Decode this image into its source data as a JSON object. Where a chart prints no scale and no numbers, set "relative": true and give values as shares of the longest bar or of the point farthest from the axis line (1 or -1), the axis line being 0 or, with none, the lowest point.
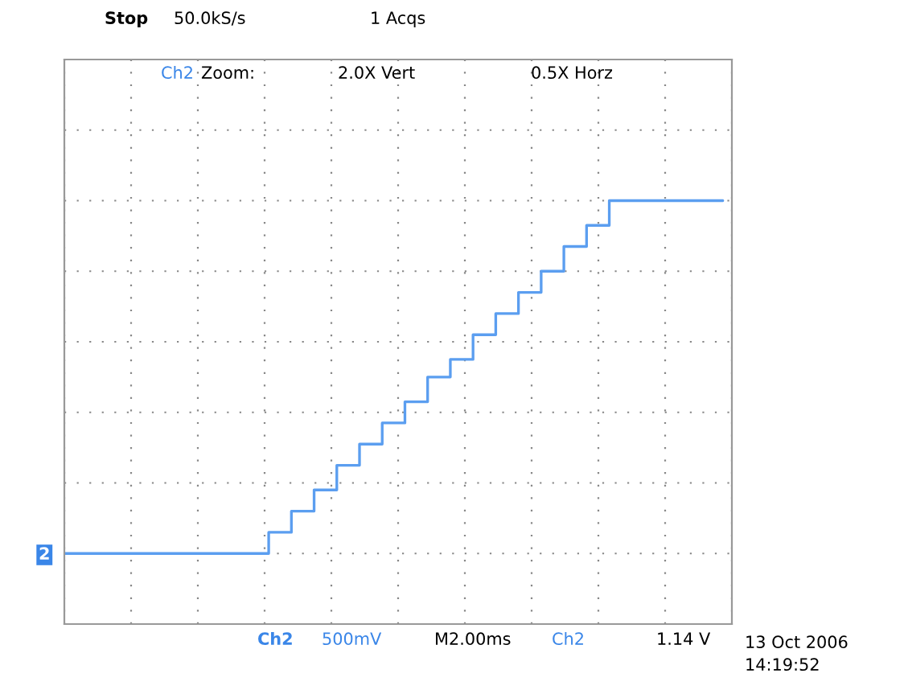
{
  "chart_data": {
    "type": "step",
    "relative": true,
    "grid": true,
    "tick_labels": false,
    "categories": [
      null,
      null,
      null,
      null,
      null,
      null,
      null,
      null,
      null,
      null,
      null,
      null,
      null,
      null,
      null,
      null,
      null,
      null,
      null,
      null,
      null,
      null,
      null,
      null,
      null,
      null,
      null,
      null,
      null,
      null
    ],
    "series": [
      {
        "color": "#5b9ef0",
        "values": [
          0,
          0,
          0,
          0,
          0,
          0,
          0,
          0,
          0,
          0.06,
          0.12,
          0.18,
          0.25,
          0.31,
          0.37,
          0.43,
          0.5,
          0.55,
          0.62,
          0.68,
          0.74,
          0.8,
          0.87,
          0.93,
          1,
          1,
          1,
          1,
          1,
          1
        ]
      }
    ],
    "annotations": [
      "Stop",
      "50.0kS/s",
      "1 Acqs",
      "Ch2",
      "Zoom:",
      "2.0X Vert",
      "0.5X Horz",
      "Ch2",
      "500mV",
      "M2.00ms",
      "Ch2",
      "1.14 V",
      "13 Oct 2006",
      "14:19:52",
      "2"
    ]
  }
}
